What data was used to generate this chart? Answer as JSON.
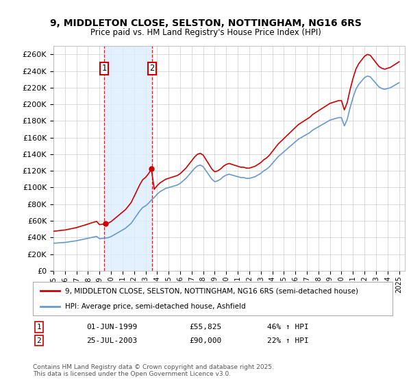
{
  "title_line1": "9, MIDDLETON CLOSE, SELSTON, NOTTINGHAM, NG16 6RS",
  "title_line2": "Price paid vs. HM Land Registry's House Price Index (HPI)",
  "xlim_start": 1995.0,
  "xlim_end": 2025.5,
  "ylim_min": 0,
  "ylim_max": 270000,
  "ytick_step": 20000,
  "legend_line1": "9, MIDDLETON CLOSE, SELSTON, NOTTINGHAM, NG16 6RS (semi-detached house)",
  "legend_line2": "HPI: Average price, semi-detached house, Ashfield",
  "transaction1_date": "01-JUN-1999",
  "transaction1_price": "£55,825",
  "transaction1_hpi": "46% ↑ HPI",
  "transaction1_year": 1999.42,
  "transaction1_value": 55825,
  "transaction2_date": "25-JUL-2003",
  "transaction2_price": "£90,000",
  "transaction2_hpi": "22% ↑ HPI",
  "transaction2_year": 2003.56,
  "transaction2_value": 90000,
  "background_color": "#ffffff",
  "plot_bg_color": "#ffffff",
  "grid_color": "#cccccc",
  "hpi_line_color": "#6699cc",
  "price_line_color": "#cc0000",
  "annotation_shade_color": "#ddeeff",
  "footer_text": "Contains HM Land Registry data © Crown copyright and database right 2025.\nThis data is licensed under the Open Government Licence v3.0."
}
